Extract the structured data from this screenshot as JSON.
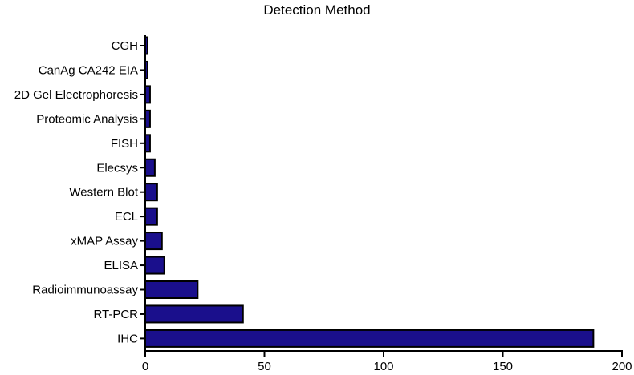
{
  "chart_data": {
    "type": "bar",
    "orientation": "horizontal",
    "title": "Detection Method",
    "xlabel": "",
    "ylabel": "",
    "xlim": [
      0,
      200
    ],
    "xticks": [
      0,
      50,
      100,
      150,
      200
    ],
    "grid": false,
    "legend": "none",
    "categories": [
      "CGH",
      "CanAg CA242 EIA",
      "2D Gel Electrophoresis",
      "Proteomic Analysis",
      "FISH",
      "Elecsys",
      "Western Blot",
      "ECL",
      "xMAP Assay",
      "ELISA",
      "Radioimmunoassay",
      "RT-PCR",
      "IHC"
    ],
    "values": [
      1,
      1,
      2,
      2,
      2,
      4,
      5,
      5,
      7,
      8,
      22,
      41,
      188
    ],
    "colors": {
      "bar_fill": "#1a0f8c",
      "bar_stroke": "#000000",
      "axis": "#000000"
    }
  }
}
